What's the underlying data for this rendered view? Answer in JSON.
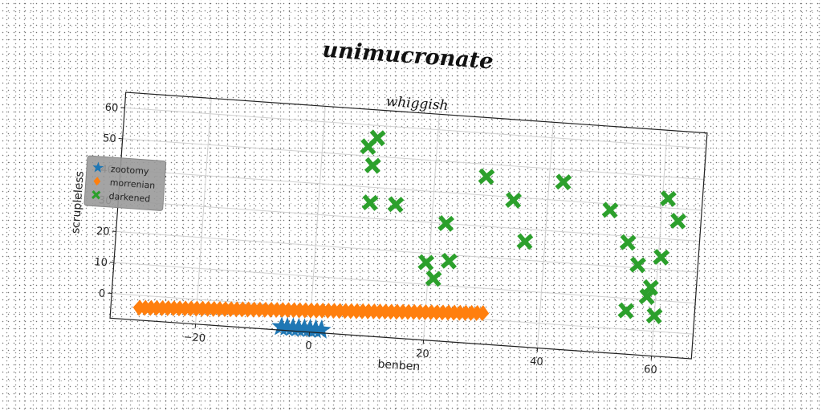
{
  "chart_data": {
    "type": "scatter",
    "title": "unimucronate",
    "subtitle": "whiggish",
    "xlabel": "benben",
    "ylabel": "scrupleless",
    "xlim": [
      -35,
      67
    ],
    "ylim": [
      -8,
      65
    ],
    "xticks": [
      -20,
      0,
      20,
      40,
      60
    ],
    "yticks": [
      0,
      10,
      20,
      30,
      40,
      50,
      60
    ],
    "grid": true,
    "legend_position": "left",
    "series": [
      {
        "name": "zootomy",
        "marker": "star",
        "color": "#1f77b4",
        "x": [
          -5,
          -4,
          -3,
          -2,
          -1,
          0,
          1,
          2
        ],
        "y": [
          -7,
          -7,
          -7,
          -7,
          -7,
          -7,
          -7,
          -7
        ]
      },
      {
        "name": "morrenian",
        "marker": "diamond",
        "color": "#ff7f0e",
        "x": [
          -30,
          -29,
          -28,
          -27,
          -26,
          -25,
          -24,
          -23,
          -22,
          -21,
          -20,
          -19,
          -18,
          -17,
          -16,
          -15,
          -14,
          -13,
          -12,
          -11,
          -10,
          -9,
          -8,
          -7,
          -6,
          -5,
          -4,
          -3,
          -2,
          -1,
          0,
          1,
          2,
          3,
          4,
          5,
          6,
          7,
          8,
          9,
          10,
          11,
          12,
          13,
          14,
          15,
          16,
          17,
          18,
          19,
          20,
          21,
          22,
          23,
          24,
          25,
          26,
          27,
          28,
          29,
          30
        ],
        "y": [
          -4,
          -3.9,
          -3.8,
          -3.7,
          -3.6,
          -3.5,
          -3.4,
          -3.3,
          -3.2,
          -3.1,
          -3,
          -2.9,
          -2.8,
          -2.7,
          -2.6,
          -2.5,
          -2.4,
          -2.3,
          -2.2,
          -2.1,
          -2,
          -1.9,
          -1.8,
          -1.7,
          -1.6,
          -1.5,
          -1.4,
          -1.3,
          -1.2,
          -1.1,
          -1,
          -0.9,
          -0.8,
          -0.7,
          -0.6,
          -0.5,
          -0.4,
          -0.3,
          -0.2,
          -0.1,
          0,
          0.1,
          0.2,
          0.3,
          0.4,
          0.5,
          0.6,
          0.7,
          0.8,
          0.9,
          1,
          1.1,
          1.2,
          1.3,
          1.4,
          1.5,
          1.6,
          1.7,
          1.8,
          1.9,
          2
        ]
      },
      {
        "name": "darkened",
        "marker": "x",
        "color": "#2ca02c",
        "x": [
          8,
          9,
          9.5,
          9,
          13.5,
          19.5,
          21,
          22.5,
          23.5,
          29,
          34,
          36.5,
          42.5,
          51,
          54.5,
          55,
          56.5,
          58.5,
          59,
          60,
          60.5,
          61,
          63
        ],
        "y": [
          53,
          47,
          56,
          35,
          35,
          17,
          12,
          30,
          18,
          46,
          39,
          26,
          46,
          38,
          28,
          6,
          21,
          11,
          14,
          5,
          24,
          43,
          36
        ]
      }
    ]
  }
}
